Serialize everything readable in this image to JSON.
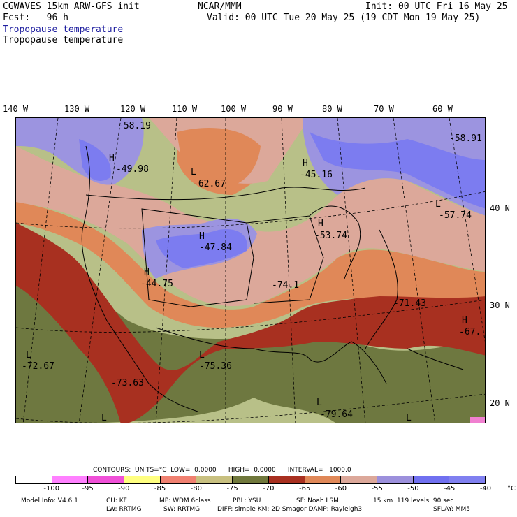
{
  "header": {
    "model_line": "CGWAVES 15km ARW-GFS init",
    "fcst_label": "Fcst:   96 h",
    "org": "NCAR/MMM",
    "init": "Init: 00 UTC Fri 16 May 25",
    "valid": "Valid: 00 UTC Tue 20 May 25 (19 CDT Mon 19 May 25)",
    "field1": "Tropopause temperature",
    "field2": "Tropopause temperature"
  },
  "map": {
    "lon_labels": [
      "140 W",
      "130 W",
      "120 W",
      "110 W",
      "100 W",
      "90 W",
      "80 W",
      "70 W",
      "60 W"
    ],
    "lat_labels": [
      "40 N",
      "30 N",
      "20 N"
    ],
    "centers": [
      {
        "type": "",
        "value": "-58.19"
      },
      {
        "type": "H",
        "value": "-49.98"
      },
      {
        "type": "L",
        "value": "-62.67"
      },
      {
        "type": "H",
        "value": "-45.16"
      },
      {
        "type": "",
        "value": "-58.91"
      },
      {
        "type": "L",
        "value": "-57.74"
      },
      {
        "type": "H",
        "value": "-53.74"
      },
      {
        "type": "H",
        "value": "-47.84"
      },
      {
        "type": "H",
        "value": "-44.75"
      },
      {
        "type": "",
        "value": "-74.1"
      },
      {
        "type": "",
        "value": "-71.43"
      },
      {
        "type": "H",
        "value": "-67."
      },
      {
        "type": "L",
        "value": "-72.67"
      },
      {
        "type": "L",
        "value": "-75.36"
      },
      {
        "type": "",
        "value": "-73.63"
      },
      {
        "type": "L",
        "value": "-79.64"
      },
      {
        "type": "L",
        "value": ""
      },
      {
        "type": "L",
        "value": ""
      }
    ],
    "colors": {
      "deep_blue": "#7c7cf0",
      "lavender": "#9c94e0",
      "pink_beige": "#dca89a",
      "orange": "#e08858",
      "red_brown": "#a83020",
      "olive": "#6e7840",
      "khaki": "#b8c088",
      "outside": "#ffffff"
    }
  },
  "legend": {
    "contours_line": "CONTOURS:  UNITS=°C  LOW=  0.0000      HIGH=  0.0000      INTERVAL=   1000.0",
    "swatches": [
      "#ffffff",
      "#ff80ff",
      "#f050d8",
      "#ffff80",
      "#f08070",
      "#c8c080",
      "#70783c",
      "#a83020",
      "#e08858",
      "#dca89a",
      "#9c90dc",
      "#7070f0",
      "#8080f0"
    ],
    "ticks": [
      "-100",
      "-95",
      "-90",
      "-85",
      "-80",
      "-75",
      "-70",
      "-65",
      "-60",
      "-55",
      "-50",
      "-45",
      "-40",
      "°C"
    ]
  },
  "footer": {
    "line1": [
      "Model Info: V4.6.1",
      "CU: KF",
      "MP: WDM 6class",
      "PBL: YSU",
      "SF: Noah LSM",
      "15 km  119 levels  90 sec"
    ],
    "line2": [
      "LW: RRTMG",
      "SW: RRTMG",
      "DIFF: simple KM: 2D Smagor DAMP: Rayleigh3",
      "SFLAY: MM5"
    ]
  }
}
